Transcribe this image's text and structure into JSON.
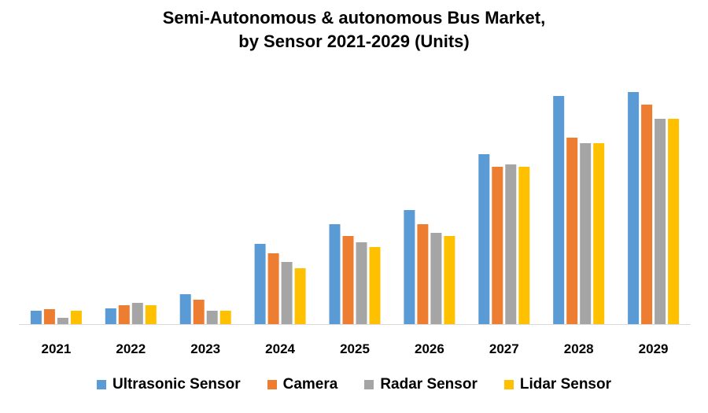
{
  "chart_data": {
    "type": "bar",
    "title_line1": "Semi-Autonomous & autonomous Bus Market,",
    "title_line2": "by Sensor 2021-2029 (Units)",
    "xlabel": "",
    "ylabel": "",
    "categories": [
      "2021",
      "2022",
      "2023",
      "2024",
      "2025",
      "2026",
      "2027",
      "2028",
      "2029"
    ],
    "ylim": [
      0,
      300
    ],
    "grid": false,
    "legend_position": "bottom",
    "series": [
      {
        "name": "Ultrasonic Sensor",
        "color": "#5B9BD5",
        "values": [
          17,
          20,
          38,
          102,
          127,
          145,
          216,
          290,
          295
        ]
      },
      {
        "name": "Camera",
        "color": "#ED7D31",
        "values": [
          19,
          24,
          31,
          90,
          112,
          127,
          200,
          237,
          279
        ]
      },
      {
        "name": "Radar Sensor",
        "color": "#A5A5A5",
        "values": [
          8,
          27,
          17,
          79,
          104,
          116,
          203,
          230,
          261
        ]
      },
      {
        "name": "Lidar Sensor",
        "color": "#FFC000",
        "values": [
          17,
          24,
          17,
          71,
          98,
          112,
          200,
          230,
          261
        ]
      }
    ]
  }
}
